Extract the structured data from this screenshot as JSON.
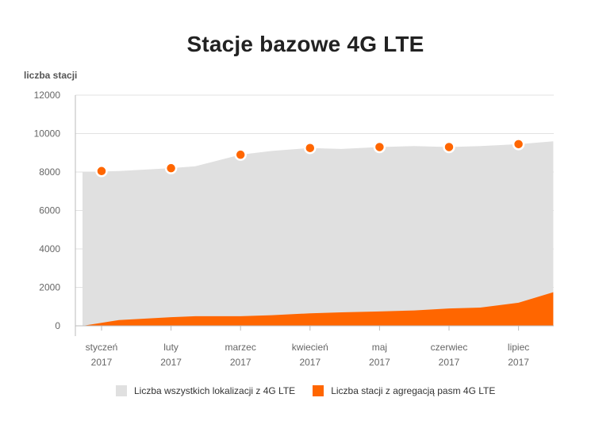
{
  "chart_data": {
    "type": "area",
    "title": "Stacje bazowe 4G LTE",
    "ylabel": "liczba stacji",
    "xlabel": "",
    "ylim": [
      0,
      12000
    ],
    "yticks": [
      "12000",
      "10000",
      "8000",
      "6000",
      "4000",
      "2000",
      "0"
    ],
    "categories": [
      [
        "styczeń",
        "2017"
      ],
      [
        "luty",
        "2017"
      ],
      [
        "marzec",
        "2017"
      ],
      [
        "kwiecień",
        "2017"
      ],
      [
        "maj",
        "2017"
      ],
      [
        "czerwiec",
        "2017"
      ],
      [
        "lipiec",
        "2017"
      ]
    ],
    "series": [
      {
        "name": "Liczba wszystkich lokalizacji z 4G LTE",
        "color": "#e0e0e0",
        "area_x": [
          0,
          0.25,
          1,
          1.35,
          2,
          2.45,
          3,
          3.45,
          4,
          4.5,
          5,
          5.45,
          6,
          6.5
        ],
        "area_values": [
          8000,
          8050,
          8200,
          8300,
          8900,
          9100,
          9250,
          9200,
          9300,
          9350,
          9300,
          9350,
          9450,
          9600
        ],
        "values": [
          8050,
          8200,
          8900,
          9250,
          9300,
          9300,
          9450
        ],
        "marker_color": "#ff6600"
      },
      {
        "name": "Liczba stacji z agregacją pasm 4G LTE",
        "color": "#ff6600",
        "area_x": [
          0,
          0.25,
          1,
          1.35,
          2,
          2.45,
          3,
          3.45,
          4,
          4.5,
          5,
          5.45,
          6,
          6.5
        ],
        "area_values": [
          0,
          300,
          450,
          500,
          500,
          550,
          650,
          700,
          750,
          800,
          900,
          950,
          1200,
          1750
        ]
      }
    ]
  }
}
